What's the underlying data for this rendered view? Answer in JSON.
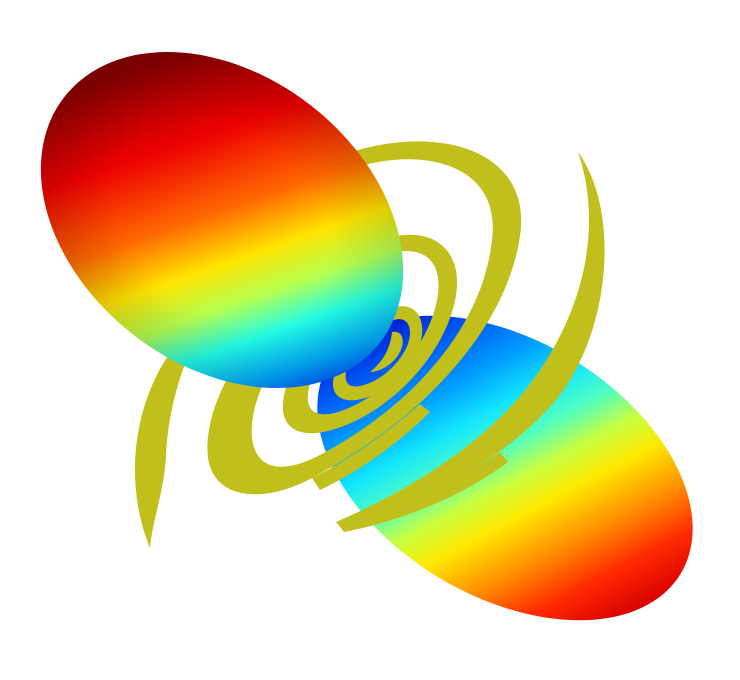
{
  "figure": {
    "background": "#ffffff",
    "subject": "dipole-radiation-lobes",
    "lobe_colormap": [
      "#00008f",
      "#0000ff",
      "#00a0ff",
      "#00ffff",
      "#7fff7f",
      "#ffff00",
      "#ff8000",
      "#ff0000",
      "#800000"
    ],
    "ring_color": "#c0bf1c",
    "lobe_count": 2,
    "ring_count": 5
  }
}
